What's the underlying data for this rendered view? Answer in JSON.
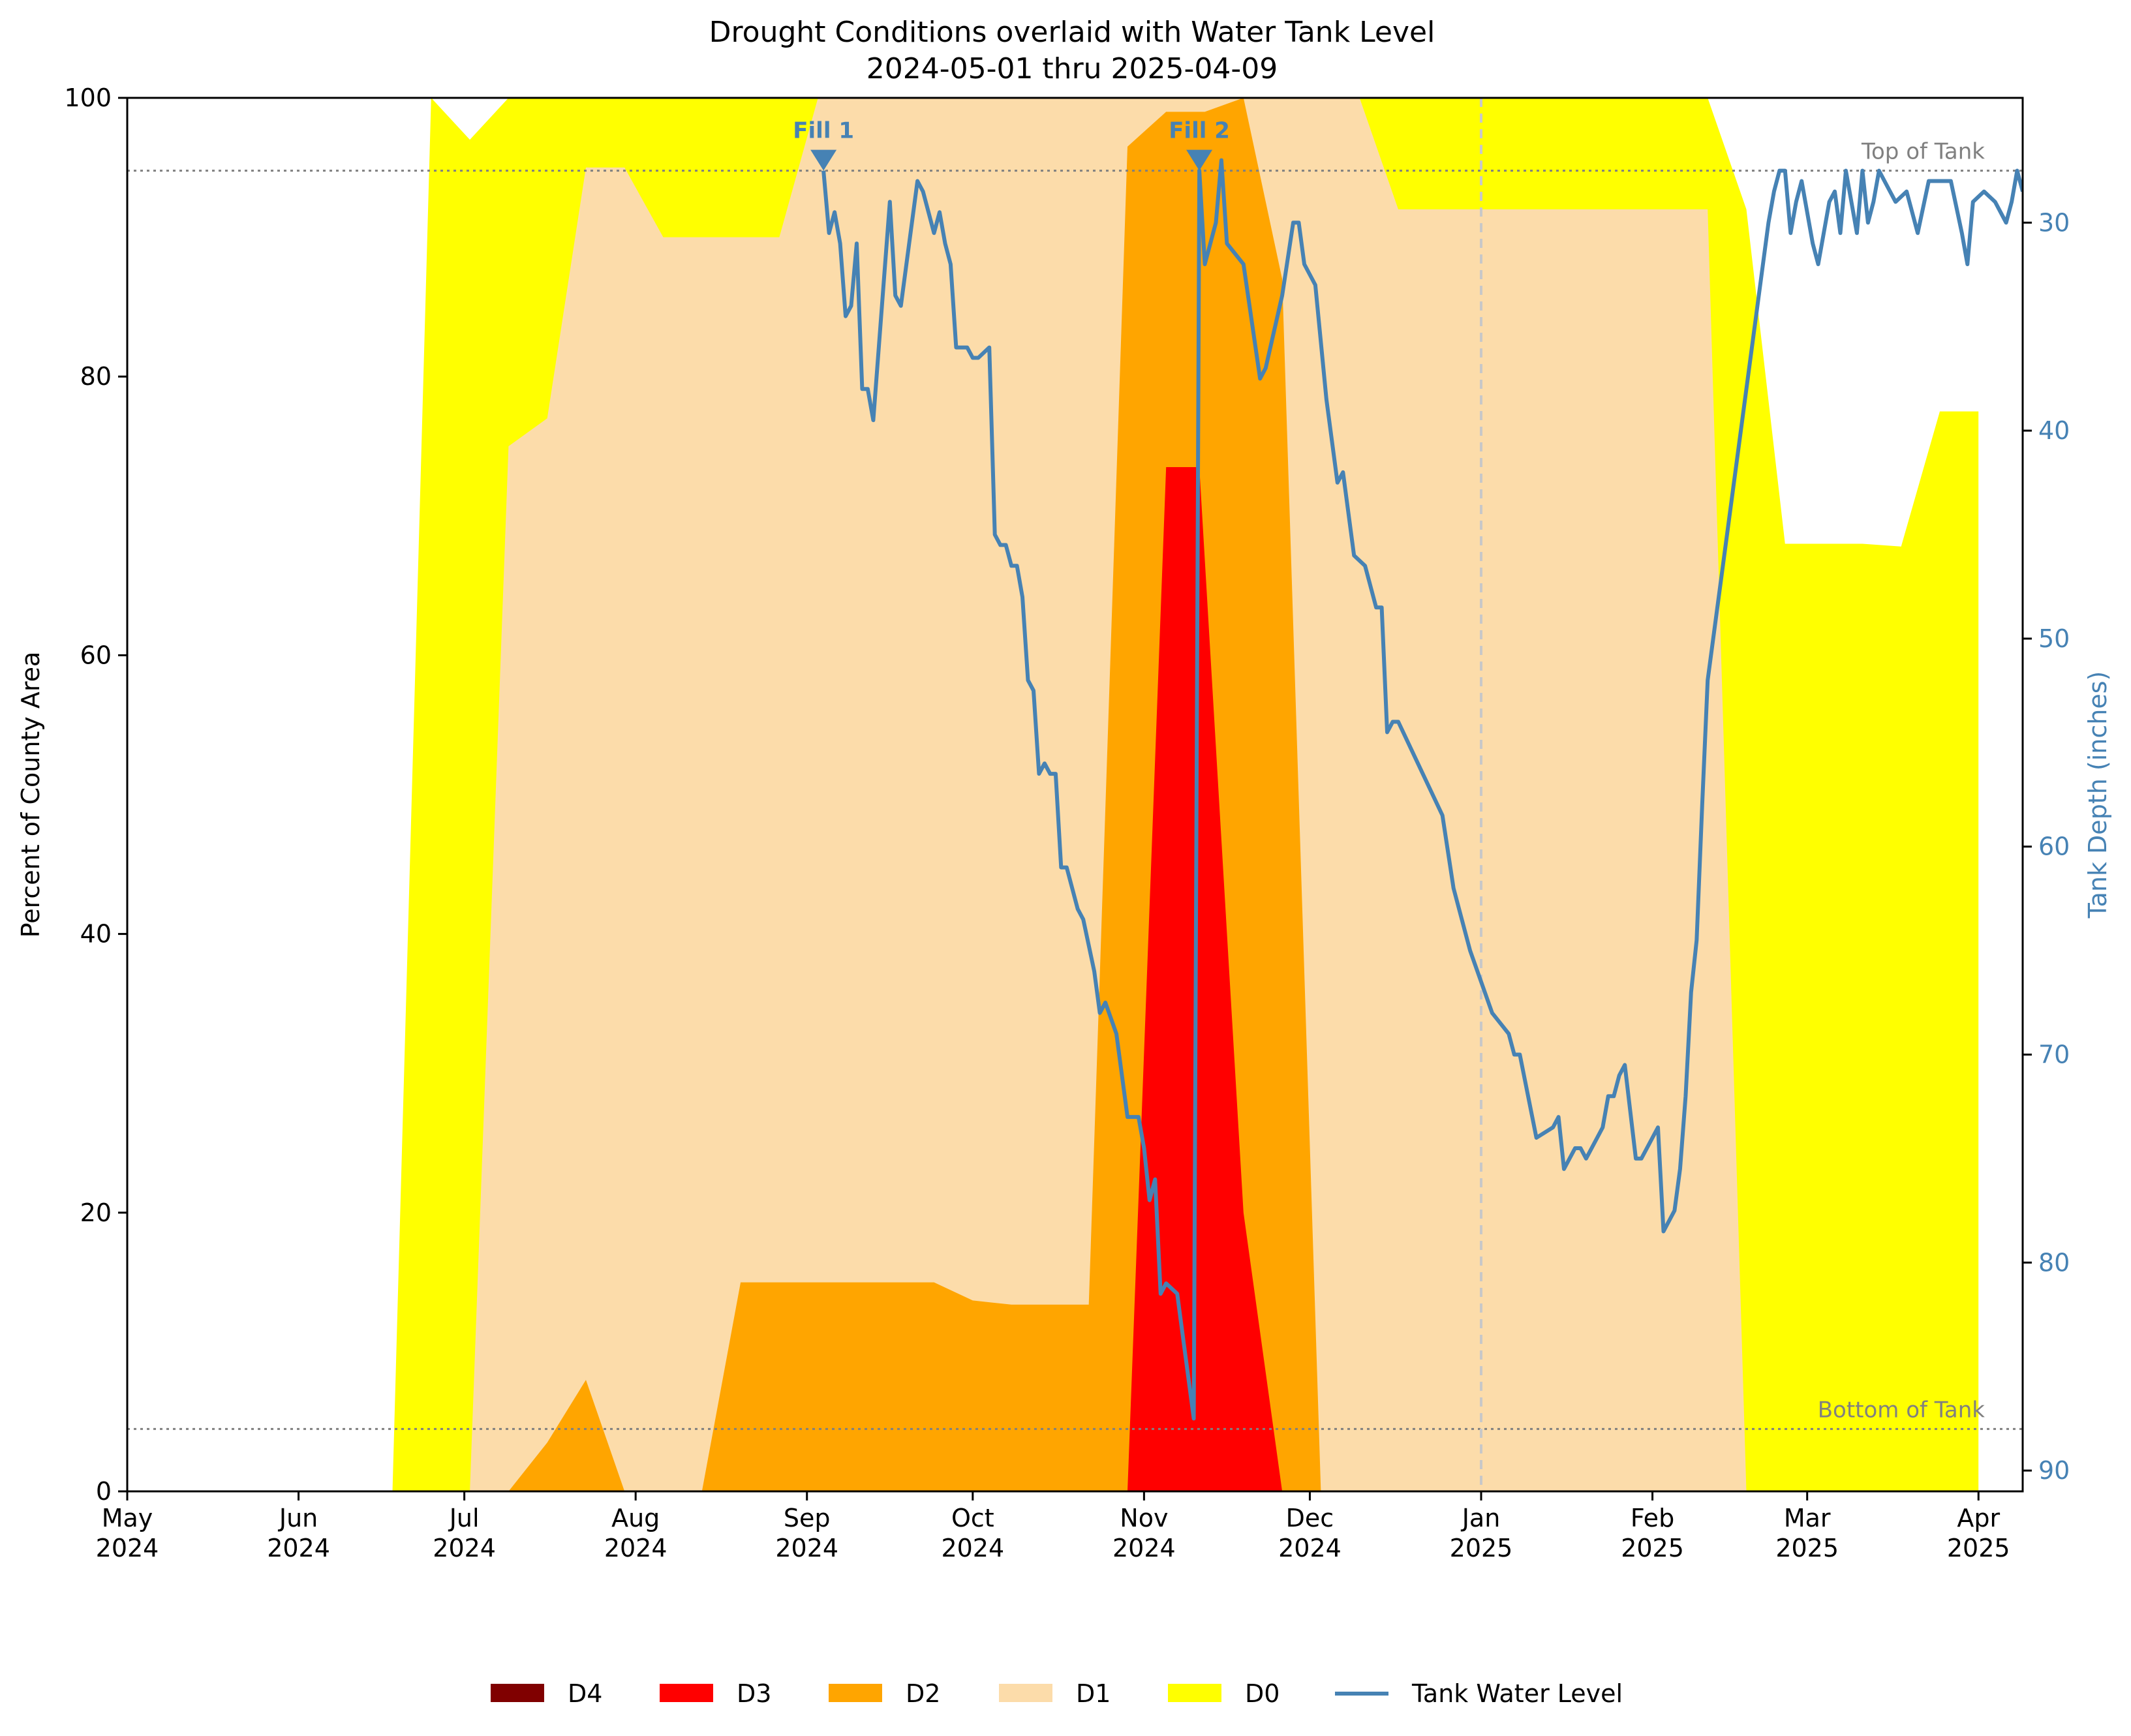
{
  "chart_data": {
    "type": "area",
    "title": "Drought Conditions overlaid with Water Tank Level",
    "subtitle": "2024-05-01 thru 2025-04-09",
    "ylabel": "Percent of County Area",
    "y2label": "Tank Depth (inches)",
    "xlim": [
      "2024-05-01",
      "2025-04-09"
    ],
    "ylim": [
      0,
      100
    ],
    "y2lim": [
      91,
      24
    ],
    "y2_inverted": true,
    "y_ticks": [
      "0",
      "20",
      "40",
      "60",
      "80",
      "100"
    ],
    "y2_ticks": [
      "30",
      "40",
      "50",
      "60",
      "70",
      "80",
      "90"
    ],
    "x_ticks": [
      {
        "date": "2024-05-01",
        "label": [
          "May",
          "2024"
        ]
      },
      {
        "date": "2024-06-01",
        "label": [
          "Jun",
          "2024"
        ]
      },
      {
        "date": "2024-07-01",
        "label": [
          "Jul",
          "2024"
        ]
      },
      {
        "date": "2024-08-01",
        "label": [
          "Aug",
          "2024"
        ]
      },
      {
        "date": "2024-09-01",
        "label": [
          "Sep",
          "2024"
        ]
      },
      {
        "date": "2024-10-01",
        "label": [
          "Oct",
          "2024"
        ]
      },
      {
        "date": "2024-11-01",
        "label": [
          "Nov",
          "2024"
        ]
      },
      {
        "date": "2024-12-01",
        "label": [
          "Dec",
          "2024"
        ]
      },
      {
        "date": "2025-01-01",
        "label": [
          "Jan",
          "2025"
        ]
      },
      {
        "date": "2025-02-01",
        "label": [
          "Feb",
          "2025"
        ]
      },
      {
        "date": "2025-03-01",
        "label": [
          "Mar",
          "2025"
        ]
      },
      {
        "date": "2025-04-01",
        "label": [
          "Apr",
          "2025"
        ]
      }
    ],
    "legend_position": "bottom-center",
    "colors": {
      "D4": "#800000",
      "D3": "#ff0000",
      "D2": "#ffa500",
      "D1": "#fcdcaa",
      "D0": "#ffff00",
      "tank": "#4682b4",
      "reference": "#808080"
    },
    "drought_series": [
      {
        "name": "D0",
        "points": [
          [
            "2024-06-18",
            0
          ],
          [
            "2024-06-25",
            100
          ],
          [
            "2024-07-02",
            97
          ],
          [
            "2024-07-09",
            100
          ],
          [
            "2024-07-16",
            100
          ],
          [
            "2024-07-23",
            100
          ],
          [
            "2024-07-30",
            100
          ],
          [
            "2024-08-06",
            100
          ],
          [
            "2024-08-13",
            100
          ],
          [
            "2024-08-20",
            100
          ],
          [
            "2024-08-27",
            100
          ],
          [
            "2024-09-03",
            100
          ],
          [
            "2024-09-10",
            100
          ],
          [
            "2024-09-17",
            100
          ],
          [
            "2024-09-24",
            100
          ],
          [
            "2024-10-01",
            100
          ],
          [
            "2024-10-08",
            100
          ],
          [
            "2024-10-15",
            100
          ],
          [
            "2024-10-22",
            100
          ],
          [
            "2024-10-29",
            100
          ],
          [
            "2024-11-05",
            100
          ],
          [
            "2024-11-12",
            100
          ],
          [
            "2024-11-19",
            100
          ],
          [
            "2024-11-26",
            100
          ],
          [
            "2024-12-03",
            100
          ],
          [
            "2024-12-10",
            100
          ],
          [
            "2024-12-17",
            100
          ],
          [
            "2024-12-24",
            100
          ],
          [
            "2024-12-31",
            100
          ],
          [
            "2025-01-07",
            100
          ],
          [
            "2025-01-14",
            100
          ],
          [
            "2025-01-21",
            100
          ],
          [
            "2025-01-28",
            100
          ],
          [
            "2025-02-04",
            100
          ],
          [
            "2025-02-11",
            100
          ],
          [
            "2025-02-18",
            92
          ],
          [
            "2025-02-25",
            68
          ],
          [
            "2025-03-04",
            68
          ],
          [
            "2025-03-11",
            68
          ],
          [
            "2025-03-18",
            67.8
          ],
          [
            "2025-03-25",
            77.5
          ],
          [
            "2025-04-01",
            77.5
          ],
          [
            "2025-04-01",
            0
          ]
        ]
      },
      {
        "name": "D1",
        "points": [
          [
            "2024-07-02",
            0
          ],
          [
            "2024-07-09",
            75
          ],
          [
            "2024-07-16",
            77
          ],
          [
            "2024-07-23",
            95
          ],
          [
            "2024-07-30",
            95
          ],
          [
            "2024-08-06",
            90
          ],
          [
            "2024-08-13",
            90
          ],
          [
            "2024-08-20",
            90
          ],
          [
            "2024-08-27",
            90
          ],
          [
            "2024-09-03",
            100
          ],
          [
            "2024-09-10",
            100
          ],
          [
            "2024-09-17",
            100
          ],
          [
            "2024-09-24",
            100
          ],
          [
            "2024-10-01",
            100
          ],
          [
            "2024-10-08",
            100
          ],
          [
            "2024-10-15",
            100
          ],
          [
            "2024-10-22",
            100
          ],
          [
            "2024-10-29",
            100
          ],
          [
            "2024-11-05",
            100
          ],
          [
            "2024-11-12",
            100
          ],
          [
            "2024-11-19",
            100
          ],
          [
            "2024-11-26",
            100
          ],
          [
            "2024-12-03",
            100
          ],
          [
            "2024-12-10",
            100
          ],
          [
            "2024-12-17",
            92
          ],
          [
            "2024-12-24",
            92
          ],
          [
            "2024-12-31",
            92
          ],
          [
            "2025-01-07",
            92
          ],
          [
            "2025-01-14",
            92
          ],
          [
            "2025-01-21",
            92
          ],
          [
            "2025-01-28",
            92
          ],
          [
            "2025-02-04",
            92
          ],
          [
            "2025-02-11",
            92
          ],
          [
            "2025-02-18",
            0
          ]
        ]
      },
      {
        "name": "D2",
        "points": [
          [
            "2024-07-09",
            0
          ],
          [
            "2024-07-16",
            3.5
          ],
          [
            "2024-07-23",
            8
          ],
          [
            "2024-07-30",
            0
          ],
          [
            "2024-08-13",
            0
          ],
          [
            "2024-08-20",
            15
          ],
          [
            "2024-08-27",
            15
          ],
          [
            "2024-09-03",
            15
          ],
          [
            "2024-09-10",
            15
          ],
          [
            "2024-09-17",
            15
          ],
          [
            "2024-09-24",
            15
          ],
          [
            "2024-10-01",
            13.7
          ],
          [
            "2024-10-08",
            13.4
          ],
          [
            "2024-10-15",
            13.4
          ],
          [
            "2024-10-22",
            13.4
          ],
          [
            "2024-10-29",
            96.5
          ],
          [
            "2024-11-05",
            99
          ],
          [
            "2024-11-12",
            99
          ],
          [
            "2024-11-19",
            100
          ],
          [
            "2024-11-26",
            87
          ],
          [
            "2024-12-03",
            0
          ]
        ]
      },
      {
        "name": "D3",
        "points": [
          [
            "2024-10-29",
            0
          ],
          [
            "2024-11-05",
            73.5
          ],
          [
            "2024-11-11",
            73.5
          ],
          [
            "2024-11-19",
            20
          ],
          [
            "2024-11-26",
            0
          ]
        ]
      },
      {
        "name": "D4",
        "points": []
      }
    ],
    "tank_series": {
      "name": "Tank Water Level",
      "points": [
        [
          "2024-09-04",
          27.5
        ],
        [
          "2024-09-05",
          30.5
        ],
        [
          "2024-09-06",
          29.5
        ],
        [
          "2024-09-07",
          31
        ],
        [
          "2024-09-08",
          34.5
        ],
        [
          "2024-09-09",
          34
        ],
        [
          "2024-09-10",
          31
        ],
        [
          "2024-09-11",
          38
        ],
        [
          "2024-09-12",
          38
        ],
        [
          "2024-09-13",
          39.5
        ],
        [
          "2024-09-15",
          32.5
        ],
        [
          "2024-09-16",
          29
        ],
        [
          "2024-09-17",
          33.5
        ],
        [
          "2024-09-18",
          34
        ],
        [
          "2024-09-21",
          28
        ],
        [
          "2024-09-22",
          28.5
        ],
        [
          "2024-09-24",
          30.5
        ],
        [
          "2024-09-25",
          29.5
        ],
        [
          "2024-09-26",
          31
        ],
        [
          "2024-09-27",
          32
        ],
        [
          "2024-09-28",
          36
        ],
        [
          "2024-09-30",
          36
        ],
        [
          "2024-10-01",
          36.5
        ],
        [
          "2024-10-02",
          36.5
        ],
        [
          "2024-10-04",
          36
        ],
        [
          "2024-10-05",
          45
        ],
        [
          "2024-10-06",
          45.5
        ],
        [
          "2024-10-07",
          45.5
        ],
        [
          "2024-10-08",
          46.5
        ],
        [
          "2024-10-09",
          46.5
        ],
        [
          "2024-10-10",
          48
        ],
        [
          "2024-10-11",
          52
        ],
        [
          "2024-10-12",
          52.5
        ],
        [
          "2024-10-13",
          56.5
        ],
        [
          "2024-10-14",
          56
        ],
        [
          "2024-10-15",
          56.5
        ],
        [
          "2024-10-16",
          56.5
        ],
        [
          "2024-10-17",
          61
        ],
        [
          "2024-10-18",
          61
        ],
        [
          "2024-10-20",
          63
        ],
        [
          "2024-10-21",
          63.5
        ],
        [
          "2024-10-23",
          66
        ],
        [
          "2024-10-24",
          68
        ],
        [
          "2024-10-25",
          67.5
        ],
        [
          "2024-10-27",
          69
        ],
        [
          "2024-10-29",
          73
        ],
        [
          "2024-10-31",
          73
        ],
        [
          "2024-11-01",
          74.5
        ],
        [
          "2024-11-02",
          77
        ],
        [
          "2024-11-03",
          76
        ],
        [
          "2024-11-04",
          81.5
        ],
        [
          "2024-11-05",
          81
        ],
        [
          "2024-11-07",
          81.5
        ],
        [
          "2024-11-10",
          87.5
        ],
        [
          "2024-11-11",
          27.5
        ],
        [
          "2024-11-12",
          32
        ],
        [
          "2024-11-14",
          30
        ],
        [
          "2024-11-15",
          27
        ],
        [
          "2024-11-16",
          31
        ],
        [
          "2024-11-19",
          32
        ],
        [
          "2024-11-22",
          37.5
        ],
        [
          "2024-11-23",
          37
        ],
        [
          "2024-11-26",
          33.5
        ],
        [
          "2024-11-28",
          30
        ],
        [
          "2024-11-29",
          30
        ],
        [
          "2024-11-30",
          32
        ],
        [
          "2024-12-02",
          33
        ],
        [
          "2024-12-04",
          38.5
        ],
        [
          "2024-12-06",
          42.5
        ],
        [
          "2024-12-07",
          42
        ],
        [
          "2024-12-09",
          46
        ],
        [
          "2024-12-11",
          46.5
        ],
        [
          "2024-12-13",
          48.5
        ],
        [
          "2024-12-14",
          48.5
        ],
        [
          "2024-12-15",
          54.5
        ],
        [
          "2024-12-16",
          54
        ],
        [
          "2024-12-17",
          54
        ],
        [
          "2024-12-25",
          58.5
        ],
        [
          "2024-12-27",
          62
        ],
        [
          "2024-12-30",
          65
        ],
        [
          "2025-01-03",
          68
        ],
        [
          "2025-01-06",
          69
        ],
        [
          "2025-01-07",
          70
        ],
        [
          "2025-01-08",
          70
        ],
        [
          "2025-01-11",
          74
        ],
        [
          "2025-01-14",
          73.5
        ],
        [
          "2025-01-15",
          73
        ],
        [
          "2025-01-16",
          75.5
        ],
        [
          "2025-01-17",
          75
        ],
        [
          "2025-01-18",
          74.5
        ],
        [
          "2025-01-19",
          74.5
        ],
        [
          "2025-01-20",
          75
        ],
        [
          "2025-01-23",
          73.5
        ],
        [
          "2025-01-24",
          72
        ],
        [
          "2025-01-25",
          72
        ],
        [
          "2025-01-26",
          71
        ],
        [
          "2025-01-27",
          70.5
        ],
        [
          "2025-01-29",
          75
        ],
        [
          "2025-01-30",
          75
        ],
        [
          "2025-02-02",
          73.5
        ],
        [
          "2025-02-03",
          78.5
        ],
        [
          "2025-02-05",
          77.5
        ],
        [
          "2025-02-06",
          75.5
        ],
        [
          "2025-02-07",
          72
        ],
        [
          "2025-02-08",
          67
        ],
        [
          "2025-02-09",
          64.5
        ],
        [
          "2025-02-10",
          58
        ],
        [
          "2025-02-11",
          52
        ],
        [
          "2025-02-22",
          30
        ],
        [
          "2025-02-23",
          28.5
        ],
        [
          "2025-02-24",
          27.5
        ],
        [
          "2025-02-25",
          27.5
        ],
        [
          "2025-02-26",
          30.5
        ],
        [
          "2025-02-27",
          29
        ],
        [
          "2025-02-28",
          28
        ],
        [
          "2025-03-02",
          31
        ],
        [
          "2025-03-03",
          32
        ],
        [
          "2025-03-05",
          29
        ],
        [
          "2025-03-06",
          28.5
        ],
        [
          "2025-03-07",
          30.5
        ],
        [
          "2025-03-08",
          27.5
        ],
        [
          "2025-03-10",
          30.5
        ],
        [
          "2025-03-11",
          27.5
        ],
        [
          "2025-03-12",
          30
        ],
        [
          "2025-03-13",
          29
        ],
        [
          "2025-03-14",
          27.5
        ],
        [
          "2025-03-16",
          28.5
        ],
        [
          "2025-03-17",
          29
        ],
        [
          "2025-03-19",
          28.5
        ],
        [
          "2025-03-21",
          30.5
        ],
        [
          "2025-03-23",
          28
        ],
        [
          "2025-03-27",
          28
        ],
        [
          "2025-03-29",
          30.5
        ],
        [
          "2025-03-30",
          32
        ],
        [
          "2025-03-31",
          29
        ],
        [
          "2025-04-02",
          28.5
        ],
        [
          "2025-04-04",
          29
        ],
        [
          "2025-04-06",
          30
        ],
        [
          "2025-04-07",
          29
        ],
        [
          "2025-04-08",
          27.5
        ],
        [
          "2025-04-09",
          28.5
        ]
      ]
    },
    "reference_lines": [
      {
        "label": "Top of Tank",
        "y2": 27.5
      },
      {
        "label": "Bottom of Tank",
        "y2": 88
      }
    ],
    "vertical_marker": {
      "date": "2025-01-01"
    },
    "fill_markers": [
      {
        "label": "Fill 1",
        "date": "2024-09-04",
        "y2": 27.5
      },
      {
        "label": "Fill 2",
        "date": "2024-11-11",
        "y2": 27.5
      }
    ],
    "legend": [
      {
        "label": "D4",
        "kind": "patch",
        "color": "#800000"
      },
      {
        "label": "D3",
        "kind": "patch",
        "color": "#ff0000"
      },
      {
        "label": "D2",
        "kind": "patch",
        "color": "#ffa500"
      },
      {
        "label": "D1",
        "kind": "patch",
        "color": "#fcdcaa"
      },
      {
        "label": "D0",
        "kind": "patch",
        "color": "#ffff00"
      },
      {
        "label": "Tank Water Level",
        "kind": "line",
        "color": "#4682b4"
      }
    ]
  }
}
